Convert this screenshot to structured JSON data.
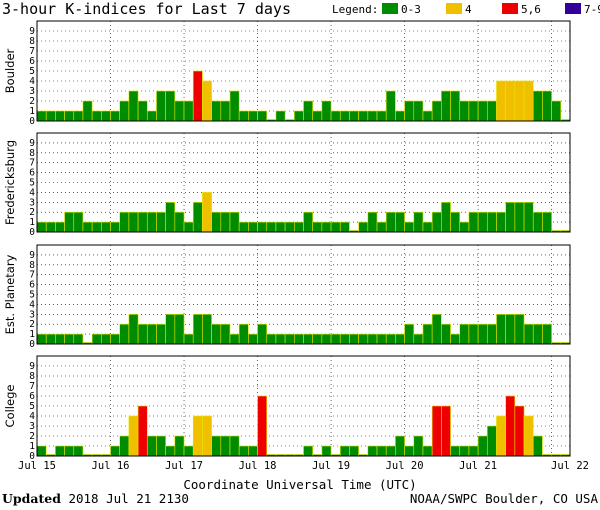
{
  "title": "3-hour K-indices for Last 7 days",
  "legend": {
    "label": "Legend:",
    "items": [
      {
        "label": "0-3",
        "color": "#008c00"
      },
      {
        "label": "4",
        "color": "#f0c000"
      },
      {
        "label": "5,6",
        "color": "#ee0000"
      },
      {
        "label": "7-9",
        "color": "#330099"
      }
    ]
  },
  "xlabel": "Coordinate Universal Time (UTC)",
  "updated_label": "Updated",
  "updated_value": "2018 Jul 21 2130",
  "credit": "NOAA/SWPC Boulder, CO USA",
  "chart_data": [
    {
      "type": "bar",
      "title": "Boulder",
      "ylim": [
        0,
        9
      ],
      "yticks": [
        "0",
        "1",
        "2",
        "3",
        "4",
        "5",
        "6",
        "7",
        "8",
        "9"
      ],
      "x_ticks": [
        "Jul 15",
        "Jul 16",
        "Jul 17",
        "Jul 18",
        "Jul 19",
        "Jul 20",
        "Jul 21",
        "Jul 22"
      ],
      "values": [
        1,
        1,
        1,
        1,
        1,
        2,
        1,
        1,
        1,
        2,
        3,
        2,
        1,
        3,
        3,
        2,
        2,
        5,
        4,
        2,
        2,
        3,
        1,
        1,
        1,
        0,
        1,
        0,
        1,
        2,
        1,
        2,
        1,
        1,
        1,
        1,
        1,
        1,
        3,
        1,
        2,
        2,
        1,
        2,
        3,
        3,
        2,
        2,
        2,
        2,
        4,
        4,
        4,
        4,
        3,
        3,
        2,
        0
      ]
    },
    {
      "type": "bar",
      "title": "Fredericksburg",
      "ylim": [
        0,
        9
      ],
      "yticks": [
        "0",
        "1",
        "2",
        "3",
        "4",
        "5",
        "6",
        "7",
        "8",
        "9"
      ],
      "x_ticks": [
        "Jul 15",
        "Jul 16",
        "Jul 17",
        "Jul 18",
        "Jul 19",
        "Jul 20",
        "Jul 21",
        "Jul 22"
      ],
      "values": [
        1,
        1,
        1,
        2,
        2,
        1,
        1,
        1,
        1,
        2,
        2,
        2,
        2,
        2,
        3,
        2,
        1,
        3,
        4,
        2,
        2,
        2,
        1,
        1,
        1,
        1,
        1,
        1,
        1,
        2,
        1,
        1,
        1,
        1,
        0,
        1,
        2,
        1,
        2,
        2,
        1,
        2,
        1,
        2,
        3,
        2,
        1,
        2,
        2,
        2,
        2,
        3,
        3,
        3,
        2,
        2,
        0,
        0
      ]
    },
    {
      "type": "bar",
      "title": "Est. Planetary",
      "ylim": [
        0,
        9
      ],
      "yticks": [
        "0",
        "1",
        "2",
        "3",
        "4",
        "5",
        "6",
        "7",
        "8",
        "9"
      ],
      "x_ticks": [
        "Jul 15",
        "Jul 16",
        "Jul 17",
        "Jul 18",
        "Jul 19",
        "Jul 20",
        "Jul 21",
        "Jul 22"
      ],
      "values": [
        1,
        1,
        1,
        1,
        1,
        0,
        1,
        1,
        1,
        2,
        3,
        2,
        2,
        2,
        3,
        3,
        1,
        3,
        3,
        2,
        2,
        1,
        2,
        1,
        2,
        1,
        1,
        1,
        1,
        1,
        1,
        1,
        1,
        1,
        1,
        1,
        1,
        1,
        1,
        1,
        2,
        1,
        2,
        3,
        2,
        1,
        2,
        2,
        2,
        2,
        3,
        3,
        3,
        2,
        2,
        2,
        0,
        0
      ]
    },
    {
      "type": "bar",
      "title": "College",
      "ylim": [
        0,
        9
      ],
      "yticks": [
        "0",
        "1",
        "2",
        "3",
        "4",
        "5",
        "6",
        "7",
        "8",
        "9"
      ],
      "x_ticks": [
        "Jul 15",
        "Jul 16",
        "Jul 17",
        "Jul 18",
        "Jul 19",
        "Jul 20",
        "Jul 21",
        "Jul 22"
      ],
      "values": [
        1,
        0,
        1,
        1,
        1,
        0,
        0,
        0,
        1,
        2,
        4,
        5,
        2,
        2,
        1,
        2,
        1,
        4,
        4,
        2,
        2,
        2,
        1,
        1,
        6,
        0,
        0,
        0,
        0,
        1,
        0,
        1,
        0,
        1,
        1,
        0,
        1,
        1,
        1,
        2,
        1,
        2,
        1,
        5,
        5,
        1,
        1,
        1,
        2,
        3,
        4,
        6,
        5,
        4,
        2,
        0,
        0,
        0
      ]
    }
  ]
}
